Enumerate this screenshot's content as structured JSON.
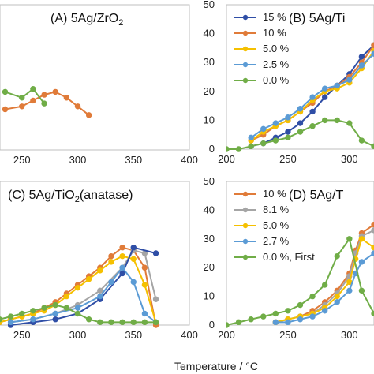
{
  "figure": {
    "xlabel": "Temperature / °C"
  },
  "colors": {
    "c15": "#2f4ea6",
    "c10": "#e07b39",
    "c5": "#f5c000",
    "c25": "#5b9bd5",
    "c0": "#70ad47",
    "c8": "#a5a5a5"
  },
  "chart_data": [
    {
      "id": "A",
      "type": "line",
      "title_text": "(A) 5Ag/ZrO",
      "title_sub": "2",
      "xlim": [
        200,
        400
      ],
      "ylim": [
        0,
        50
      ],
      "xticks_shown": [
        "250",
        "300",
        "350",
        "400"
      ],
      "yticks_shown": [],
      "series": [
        {
          "color_key": "c10",
          "x": [
            235,
            250,
            260,
            270,
            280,
            290,
            300,
            310
          ],
          "y": [
            14,
            15,
            17,
            19,
            20,
            18,
            15,
            12
          ]
        },
        {
          "color_key": "c0",
          "x": [
            235,
            250,
            260,
            270
          ],
          "y": [
            20,
            18,
            21,
            16
          ]
        }
      ]
    },
    {
      "id": "B",
      "type": "line",
      "title_text": "(B) 5Ag/Ti",
      "xlim": [
        200,
        320
      ],
      "ylim": [
        0,
        50
      ],
      "xticks_shown": [
        "200",
        "250",
        "300"
      ],
      "yticks_shown": [
        "0",
        "10",
        "20",
        "30",
        "40",
        "50"
      ],
      "legend": [
        "15 %",
        "10 %",
        "5.0 %",
        "2.5 %",
        "0.0 %"
      ],
      "series": [
        {
          "name": "15 %",
          "color_key": "c15",
          "x": [
            220,
            230,
            240,
            250,
            260,
            270,
            280,
            290,
            300,
            310,
            320
          ],
          "y": [
            1,
            2,
            4,
            6,
            9,
            13,
            18,
            22,
            26,
            32,
            36
          ]
        },
        {
          "name": "10 %",
          "color_key": "c10",
          "x": [
            220,
            230,
            240,
            250,
            260,
            270,
            280,
            290,
            300,
            310,
            320
          ],
          "y": [
            3,
            5,
            8,
            10,
            13,
            16,
            20,
            22,
            25,
            30,
            36
          ]
        },
        {
          "name": "5.0 %",
          "color_key": "c5",
          "x": [
            220,
            230,
            240,
            250,
            260,
            270,
            280,
            290,
            300,
            310,
            320
          ],
          "y": [
            3,
            6,
            8,
            10,
            13,
            17,
            20,
            21,
            23,
            28,
            34
          ]
        },
        {
          "name": "2.5 %",
          "color_key": "c25",
          "x": [
            220,
            230,
            240,
            250,
            260,
            270,
            280,
            290,
            300,
            310,
            320
          ],
          "y": [
            4,
            7,
            9,
            11,
            14,
            18,
            21,
            22,
            24,
            29,
            33
          ]
        },
        {
          "name": "0.0 %",
          "color_key": "c0",
          "x": [
            200,
            210,
            220,
            230,
            240,
            250,
            260,
            270,
            280,
            290,
            300,
            310,
            320
          ],
          "y": [
            0,
            0,
            1,
            2,
            3,
            4,
            6,
            8,
            10,
            10,
            9,
            3,
            1
          ]
        }
      ]
    },
    {
      "id": "C",
      "type": "line",
      "title_text": "(C) 5Ag/TiO",
      "title_sub": "2",
      "title_tail": "(anatase)",
      "xlim": [
        200,
        400
      ],
      "ylim": [
        0,
        50
      ],
      "xticks_shown": [
        "250",
        "300",
        "350",
        "400"
      ],
      "yticks_shown": [],
      "series": [
        {
          "color_key": "c10",
          "x": [
            230,
            240,
            250,
            260,
            270,
            280,
            290,
            300,
            310,
            320,
            330,
            340,
            350,
            360,
            370
          ],
          "y": [
            1,
            2,
            3,
            4,
            6,
            8,
            11,
            14,
            17,
            20,
            24,
            27,
            26,
            20,
            0
          ]
        },
        {
          "color_key": "c5",
          "x": [
            230,
            240,
            250,
            260,
            270,
            280,
            290,
            300,
            310,
            320,
            330,
            340,
            350,
            360,
            370
          ],
          "y": [
            1,
            2,
            3,
            4,
            5,
            7,
            10,
            13,
            16,
            19,
            22,
            24,
            23,
            14,
            1
          ]
        },
        {
          "color_key": "c8",
          "x": [
            240,
            260,
            280,
            300,
            320,
            340,
            350,
            360,
            370
          ],
          "y": [
            1,
            2,
            4,
            7,
            12,
            20,
            26,
            25,
            9
          ]
        },
        {
          "color_key": "c15",
          "x": [
            240,
            260,
            280,
            300,
            320,
            340,
            350,
            370
          ],
          "y": [
            0,
            1,
            2,
            4,
            9,
            18,
            27,
            25
          ]
        },
        {
          "color_key": "c25",
          "x": [
            240,
            260,
            280,
            300,
            320,
            330,
            340,
            350,
            360,
            370
          ],
          "y": [
            1,
            2,
            4,
            6,
            10,
            15,
            20,
            15,
            4,
            1
          ]
        },
        {
          "color_key": "c0",
          "x": [
            230,
            240,
            250,
            260,
            270,
            280,
            290,
            300,
            310,
            320,
            330,
            340,
            350,
            360,
            370
          ],
          "y": [
            2,
            3,
            4,
            5,
            6,
            7,
            6,
            4,
            2,
            1,
            1,
            1,
            1,
            1,
            1
          ]
        }
      ]
    },
    {
      "id": "D",
      "type": "line",
      "title_text": "(D) 5Ag/T",
      "xlim": [
        200,
        320
      ],
      "ylim": [
        0,
        50
      ],
      "xticks_shown": [
        "200",
        "250",
        "300"
      ],
      "yticks_shown": [
        "0",
        "10",
        "20",
        "30",
        "40",
        "50"
      ],
      "legend": [
        "10 %",
        "8.1 %",
        "5.0 %",
        "2.7 %",
        "0.0 %, First"
      ],
      "series": [
        {
          "name": "10 %",
          "color_key": "c10",
          "x": [
            240,
            250,
            260,
            270,
            280,
            290,
            300,
            305,
            310,
            320
          ],
          "y": [
            1,
            2,
            3,
            5,
            8,
            12,
            18,
            26,
            32,
            35
          ]
        },
        {
          "name": "8.1 %",
          "color_key": "c8",
          "x": [
            240,
            250,
            260,
            270,
            280,
            290,
            300,
            305,
            310,
            320
          ],
          "y": [
            1,
            2,
            3,
            4,
            7,
            11,
            17,
            25,
            31,
            33
          ]
        },
        {
          "name": "5.0 %",
          "color_key": "c5",
          "x": [
            240,
            250,
            260,
            270,
            280,
            290,
            300,
            305,
            310,
            320
          ],
          "y": [
            1,
            2,
            3,
            4,
            6,
            10,
            15,
            23,
            30,
            27
          ]
        },
        {
          "name": "2.7 %",
          "color_key": "c25",
          "x": [
            240,
            250,
            260,
            270,
            280,
            290,
            300,
            305,
            310,
            320
          ],
          "y": [
            1,
            1,
            2,
            3,
            5,
            8,
            12,
            18,
            22,
            25
          ]
        },
        {
          "name": "0.0 %, First",
          "color_key": "c0",
          "x": [
            200,
            210,
            220,
            230,
            240,
            250,
            260,
            270,
            280,
            290,
            300,
            310,
            320
          ],
          "y": [
            0,
            1,
            2,
            3,
            4,
            5,
            7,
            10,
            14,
            24,
            30,
            12,
            4
          ]
        }
      ]
    }
  ]
}
